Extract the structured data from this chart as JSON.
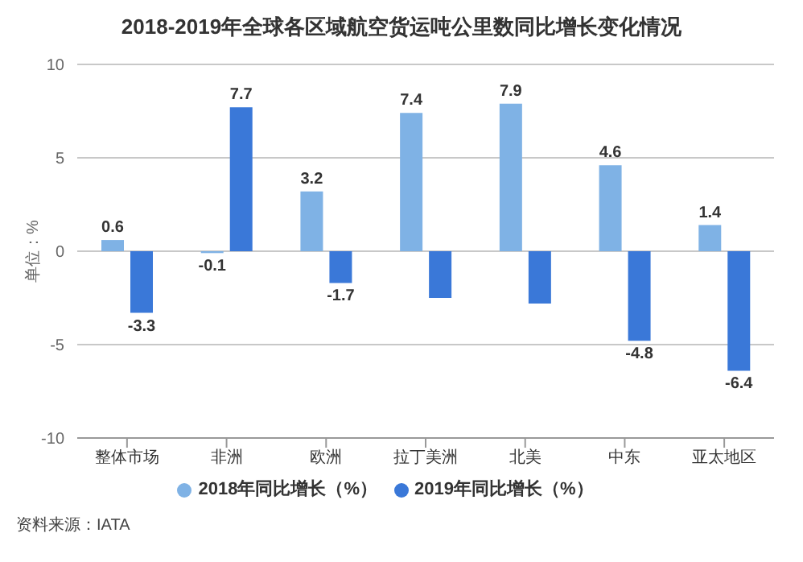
{
  "chart_data": {
    "type": "bar",
    "title": "2018-2019年全球各区域航空货运吨公里数同比增长变化情况",
    "ylabel": "单位：%",
    "categories": [
      "整体市场",
      "非洲",
      "欧洲",
      "拉丁美洲",
      "北美",
      "中东",
      "亚太地区"
    ],
    "series": [
      {
        "name": "2018年同比增长（%）",
        "color": "#7fb2e5",
        "values": [
          0.6,
          -0.1,
          3.2,
          7.4,
          7.9,
          4.6,
          1.4
        ],
        "value_labels": [
          "0.6",
          "-0.1",
          "3.2",
          "7.4",
          "7.9",
          "4.6",
          "1.4"
        ]
      },
      {
        "name": "2019年同比增长（%）",
        "color": "#3a78d8",
        "values": [
          -3.3,
          7.7,
          -1.7,
          -2.5,
          -2.8,
          -4.8,
          -6.4
        ],
        "value_labels": [
          "-3.3",
          "7.7",
          "-1.7",
          null,
          null,
          "-4.8",
          "-6.4"
        ]
      }
    ],
    "ylim": [
      -10,
      10
    ],
    "yticks": [
      -10,
      -5,
      0,
      5,
      10
    ],
    "grid": "y",
    "legend": "bottom",
    "annotations": [
      "资料来源：IATA"
    ]
  }
}
